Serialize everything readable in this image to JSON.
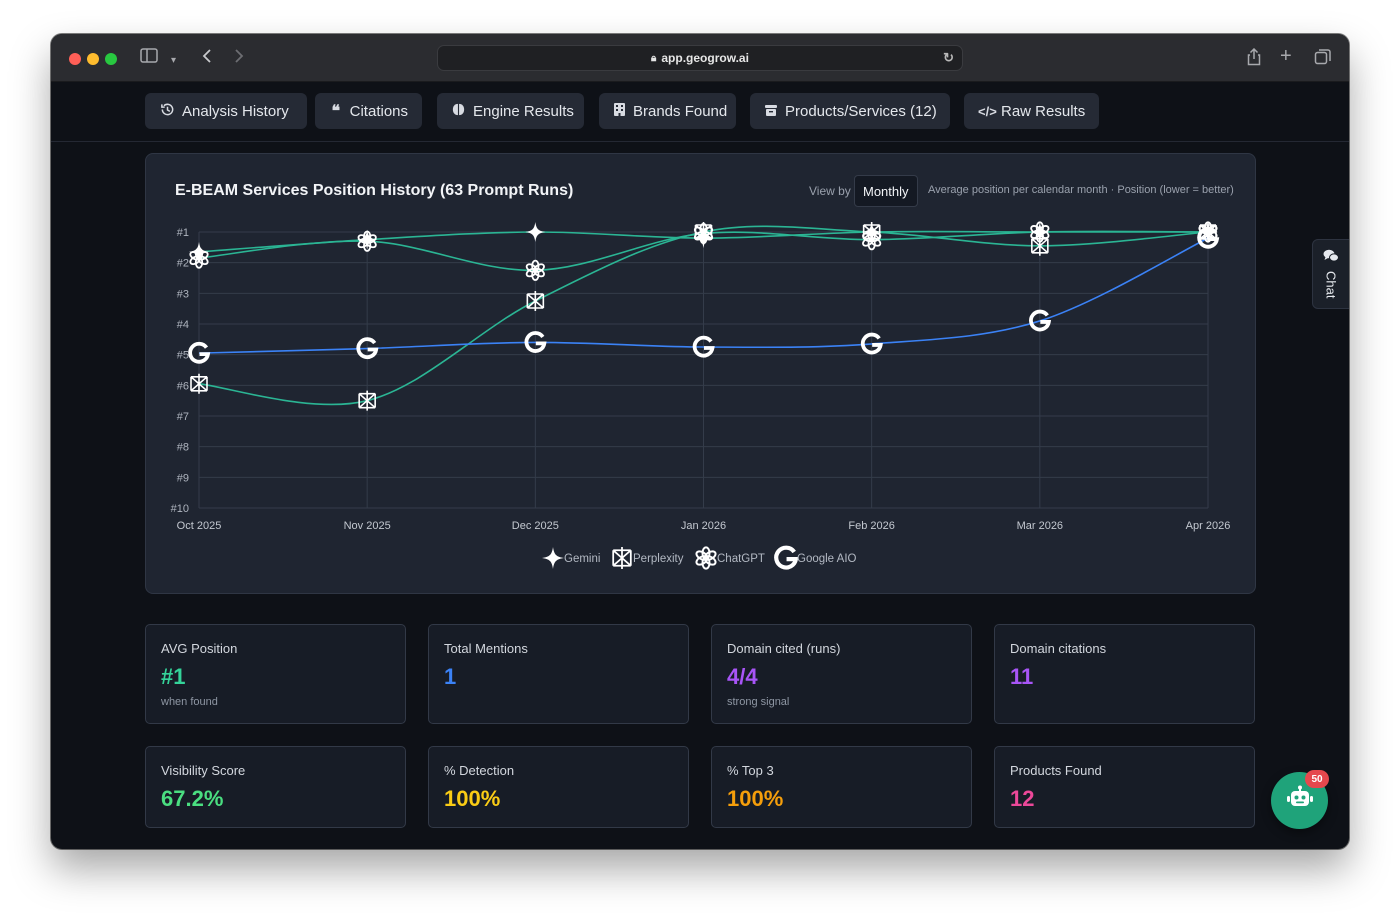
{
  "browser": {
    "url": "app.geogrow.ai"
  },
  "tabs": [
    {
      "label": "Analysis History",
      "icon": "history-icon"
    },
    {
      "label": "Citations",
      "icon": "quote-icon"
    },
    {
      "label": "Engine Results",
      "icon": "brain-icon"
    },
    {
      "label": "Brands Found",
      "icon": "building-icon"
    },
    {
      "label": "Products/Services (12)",
      "icon": "package-icon"
    },
    {
      "label": "Raw Results",
      "icon": "code-icon"
    }
  ],
  "chart_card": {
    "view_by_label": "View by",
    "view_by_value": "Monthly",
    "note": "Average position per calendar month · Position (lower = better)"
  },
  "chart_data": {
    "type": "line",
    "title": "E-BEAM Services Position History (63 Prompt Runs)",
    "x": [
      "Oct 2025",
      "Nov 2025",
      "Dec 2025",
      "Jan 2026",
      "Feb 2026",
      "Mar 2026",
      "Apr 2026"
    ],
    "y_ticks": [
      "#1",
      "#2",
      "#3",
      "#4",
      "#5",
      "#6",
      "#7",
      "#8",
      "#9",
      "#10"
    ],
    "ylim": [
      1,
      10
    ],
    "y_inverted": true,
    "grid": true,
    "legend_position": "bottom",
    "series": [
      {
        "name": "Gemini",
        "color": "#2bb594",
        "values": [
          1.65,
          1.25,
          1.0,
          1.2,
          1.0,
          1.0,
          1.0
        ]
      },
      {
        "name": "Perplexity",
        "color": "#2bb594",
        "values": [
          5.95,
          6.5,
          3.25,
          1.0,
          1.0,
          1.45,
          1.0
        ]
      },
      {
        "name": "ChatGPT",
        "color": "#2bb594",
        "values": [
          1.85,
          1.3,
          2.25,
          1.05,
          1.25,
          1.0,
          1.0
        ]
      },
      {
        "name": "Google AIO",
        "color": "#3b82f6",
        "values": [
          4.95,
          4.8,
          4.6,
          4.75,
          4.65,
          3.9,
          1.2
        ]
      }
    ]
  },
  "stats": [
    {
      "label": "AVG Position",
      "value": "#1",
      "sub": "when found",
      "color": "#34d399"
    },
    {
      "label": "Total Mentions",
      "value": "1",
      "sub": "",
      "color": "#3b82f6"
    },
    {
      "label": "Domain cited (runs)",
      "value": "4/4",
      "sub": "strong signal",
      "color": "#a855f7"
    },
    {
      "label": "Domain citations",
      "value": "11",
      "sub": "",
      "color": "#a855f7"
    },
    {
      "label": "Visibility Score",
      "value": "67.2%",
      "sub": "",
      "color": "#4ade80"
    },
    {
      "label": "% Detection",
      "value": "100%",
      "sub": "",
      "color": "#facc15"
    },
    {
      "label": "% Top 3",
      "value": "100%",
      "sub": "",
      "color": "#f59e0b"
    },
    {
      "label": "Products Found",
      "value": "12",
      "sub": "",
      "color": "#ec4899"
    }
  ],
  "chat_tab": {
    "label": "Chat"
  },
  "bot": {
    "badge": "50"
  }
}
